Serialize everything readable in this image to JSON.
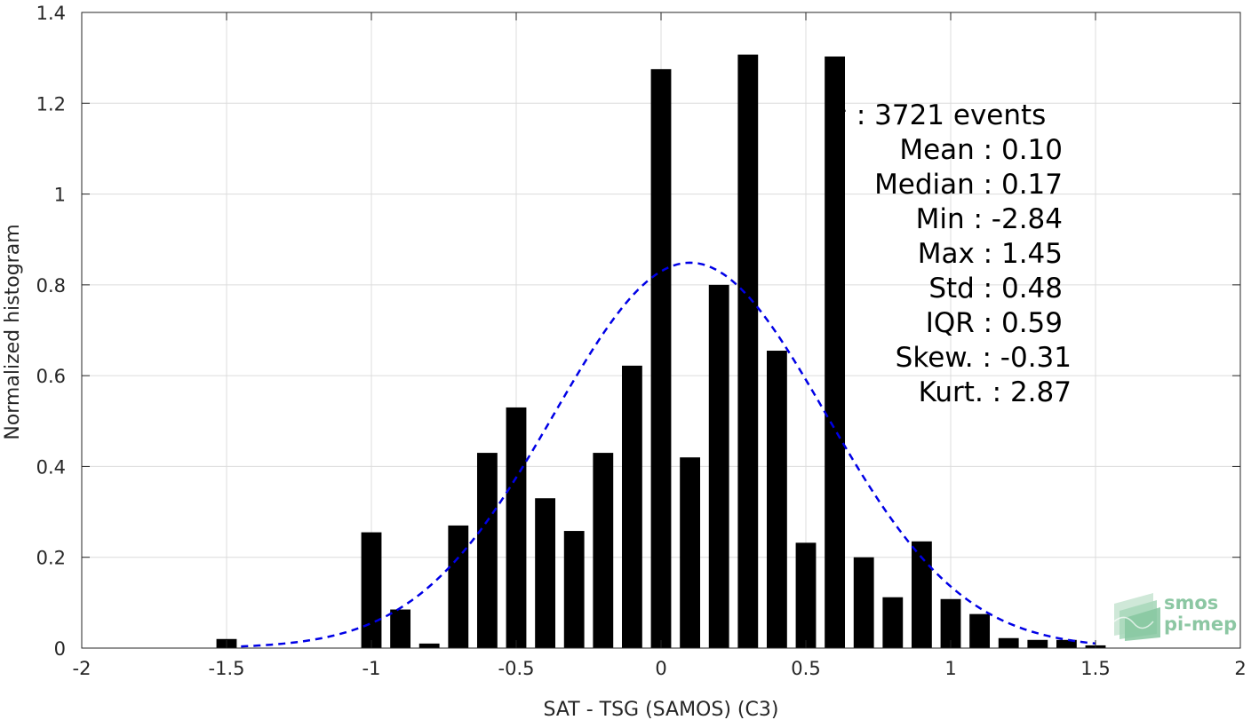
{
  "chart_data": {
    "type": "bar",
    "xlabel": "SAT - TSG (SAMOS) (C3)",
    "ylabel": "Normalized histogram",
    "xlim": [
      -2,
      2
    ],
    "ylim": [
      0,
      1.4
    ],
    "x_ticks": [
      -2,
      -1.5,
      -1,
      -0.5,
      0,
      0.5,
      1,
      1.5,
      2
    ],
    "x_tick_labels": [
      "-2",
      "-1.5",
      "-1",
      "-0.5",
      "0",
      "0.5",
      "1",
      "1.5",
      "2"
    ],
    "y_ticks": [
      0,
      0.2,
      0.4,
      0.6,
      0.8,
      1,
      1.2,
      1.4
    ],
    "y_tick_labels": [
      "0",
      "0.2",
      "0.4",
      "0.6",
      "0.8",
      "1",
      "1.2",
      "1.4"
    ],
    "grid": true,
    "bar_width": 0.07,
    "bar_color": "#000000",
    "x": [
      -1.5,
      -1.0,
      -0.9,
      -0.8,
      -0.7,
      -0.6,
      -0.5,
      -0.4,
      -0.3,
      -0.2,
      -0.1,
      0.0,
      0.1,
      0.2,
      0.3,
      0.4,
      0.5,
      0.6,
      0.7,
      0.8,
      0.9,
      1.0,
      1.1,
      1.2,
      1.3,
      1.4,
      1.5
    ],
    "values": [
      0.02,
      0.255,
      0.085,
      0.01,
      0.27,
      0.43,
      0.53,
      0.33,
      0.258,
      0.43,
      0.622,
      1.275,
      0.42,
      0.8,
      1.307,
      0.655,
      0.232,
      1.303,
      0.2,
      0.112,
      0.235,
      0.108,
      0.075,
      0.022,
      0.018,
      0.018,
      0.006
    ],
    "fit_curve": {
      "style": "dashed",
      "color": "#0000e6",
      "mean": 0.1,
      "std": 0.47,
      "x_range": [
        -1.45,
        1.5
      ]
    },
    "stats": [
      {
        "text": "#  : 3721 events",
        "anchor": "start"
      },
      {
        "text": "Mean : 0.10",
        "anchor": "end"
      },
      {
        "text": "Median : 0.17",
        "anchor": "end"
      },
      {
        "text": "Min : -2.84",
        "anchor": "end"
      },
      {
        "text": "Max : 1.45",
        "anchor": "end"
      },
      {
        "text": "Std : 0.48",
        "anchor": "end"
      },
      {
        "text": "IQR : 0.59",
        "anchor": "end"
      },
      {
        "text": "Skew. : -0.31",
        "anchor": "end"
      },
      {
        "text": "Kurt. : 2.87",
        "anchor": "end"
      }
    ],
    "logo": {
      "line1": "smos",
      "line2": "pi-mep",
      "color": "#8cc7a3"
    }
  }
}
